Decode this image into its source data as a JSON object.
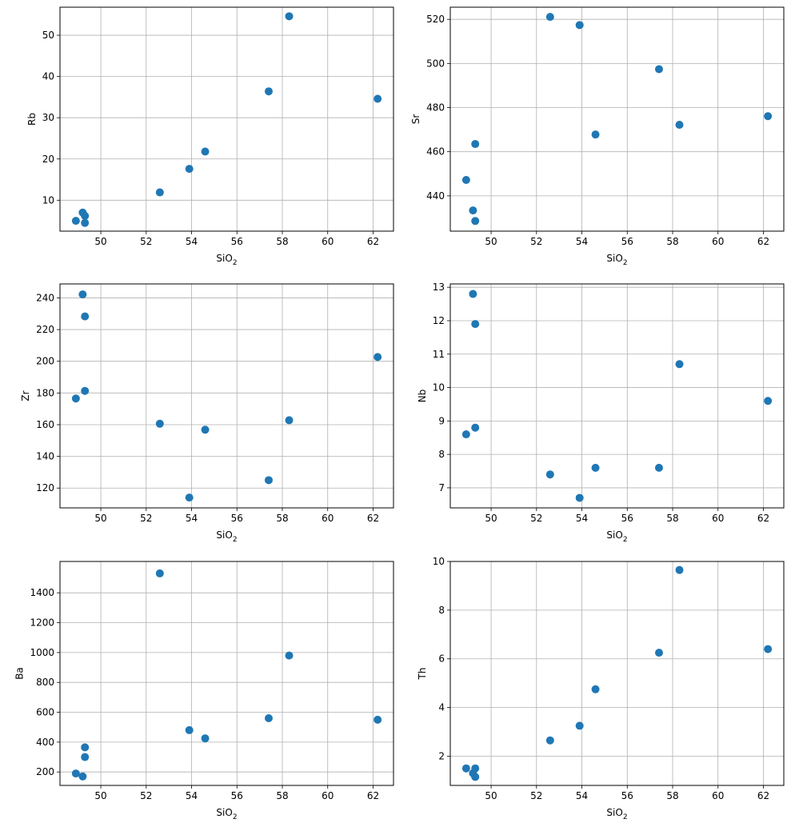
{
  "chart_data": [
    {
      "type": "scatter",
      "xlabel": "SiO",
      "xlabel_subscript": "2",
      "ylabel": "Rb",
      "xlim": [
        48.2,
        62.9
      ],
      "ylim": [
        2.5,
        56.8
      ],
      "xticks": [
        50,
        52,
        54,
        56,
        58,
        60,
        62
      ],
      "yticks": [
        10,
        20,
        30,
        40,
        50
      ],
      "grid": true,
      "color": "#1f77b4",
      "x": [
        48.9,
        49.2,
        49.3,
        49.3,
        52.6,
        53.9,
        54.6,
        57.4,
        58.3,
        62.2
      ],
      "y": [
        5.0,
        7.0,
        6.2,
        4.5,
        11.9,
        17.6,
        21.8,
        36.4,
        54.6,
        34.6
      ]
    },
    {
      "type": "scatter",
      "xlabel": "SiO",
      "xlabel_subscript": "2",
      "ylabel": "Sr",
      "xlim": [
        48.2,
        62.9
      ],
      "ylim": [
        424,
        525.5
      ],
      "xticks": [
        50,
        52,
        54,
        56,
        58,
        60,
        62
      ],
      "yticks": [
        440,
        460,
        480,
        500,
        520
      ],
      "grid": true,
      "color": "#1f77b4",
      "x": [
        48.9,
        49.2,
        49.3,
        49.3,
        52.6,
        53.9,
        54.6,
        57.4,
        58.3,
        62.2
      ],
      "y": [
        447.2,
        433.4,
        463.5,
        428.6,
        521.1,
        517.4,
        467.8,
        497.4,
        472.2,
        476.1
      ]
    },
    {
      "type": "scatter",
      "xlabel": "SiO",
      "xlabel_subscript": "2",
      "ylabel": "Zr",
      "xlim": [
        48.2,
        62.9
      ],
      "ylim": [
        107.5,
        248.8
      ],
      "xticks": [
        50,
        52,
        54,
        56,
        58,
        60,
        62
      ],
      "yticks": [
        120,
        140,
        160,
        180,
        200,
        220,
        240
      ],
      "grid": true,
      "color": "#1f77b4",
      "x": [
        48.9,
        49.2,
        49.3,
        49.3,
        52.6,
        53.9,
        54.6,
        57.4,
        58.3,
        62.2
      ],
      "y": [
        176.5,
        242.2,
        181.3,
        228.3,
        160.6,
        114.0,
        156.8,
        125.0,
        162.8,
        202.7
      ]
    },
    {
      "type": "scatter",
      "xlabel": "SiO",
      "xlabel_subscript": "2",
      "ylabel": "Nb",
      "xlim": [
        48.2,
        62.9
      ],
      "ylim": [
        6.4,
        13.1
      ],
      "xticks": [
        50,
        52,
        54,
        56,
        58,
        60,
        62
      ],
      "yticks": [
        7,
        8,
        9,
        10,
        11,
        12,
        13
      ],
      "grid": true,
      "color": "#1f77b4",
      "x": [
        48.9,
        49.2,
        49.3,
        49.3,
        52.6,
        53.9,
        54.6,
        57.4,
        58.3,
        62.2
      ],
      "y": [
        8.6,
        12.8,
        8.8,
        11.9,
        7.4,
        6.7,
        7.6,
        7.6,
        10.7,
        9.6
      ]
    },
    {
      "type": "scatter",
      "xlabel": "SiO",
      "xlabel_subscript": "2",
      "ylabel": "Ba",
      "xlim": [
        48.2,
        62.9
      ],
      "ylim": [
        110,
        1610
      ],
      "xticks": [
        50,
        52,
        54,
        56,
        58,
        60,
        62
      ],
      "yticks": [
        200,
        400,
        600,
        800,
        1000,
        1200,
        1400
      ],
      "grid": true,
      "color": "#1f77b4",
      "x": [
        48.9,
        49.2,
        49.3,
        49.3,
        52.6,
        53.9,
        54.6,
        57.4,
        58.3,
        62.2
      ],
      "y": [
        190,
        170,
        365,
        300,
        1530,
        480,
        425,
        560,
        980,
        550
      ]
    },
    {
      "type": "scatter",
      "xlabel": "SiO",
      "xlabel_subscript": "2",
      "ylabel": "Th",
      "xlim": [
        48.2,
        62.9
      ],
      "ylim": [
        0.8,
        10.0
      ],
      "xticks": [
        50,
        52,
        54,
        56,
        58,
        60,
        62
      ],
      "yticks": [
        2,
        4,
        6,
        8,
        10
      ],
      "grid": true,
      "color": "#1f77b4",
      "x": [
        48.9,
        49.2,
        49.3,
        49.3,
        52.6,
        53.9,
        54.6,
        57.4,
        58.3,
        62.2
      ],
      "y": [
        1.5,
        1.3,
        1.5,
        1.15,
        2.65,
        3.25,
        4.75,
        6.25,
        9.65,
        6.4
      ]
    }
  ]
}
